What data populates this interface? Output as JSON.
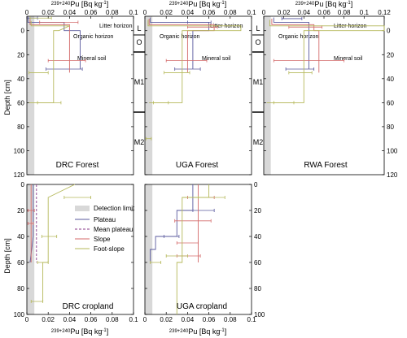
{
  "colors": {
    "plateau": "#5a5a9e",
    "mean_plateau": "#8a3a8a",
    "slope": "#d46a6a",
    "foot_slope": "#b5b85a",
    "detection": "#d8d8d8"
  },
  "legend": {
    "detection": "Detection limit",
    "plateau": "Plateau",
    "mean_plateau": "Mean plateau",
    "slope": "Slope",
    "foot_slope": "Foot-slope"
  },
  "xlabel_top_prefix": "239+240",
  "xlabel_top_main": "Pu [Bq kg",
  "xlabel_top_sup": "-1",
  "xlabel_top_end": "]",
  "ylabel": "Depth [cm]",
  "horizons": {
    "litter": "Litter horizon",
    "organic": "Organic horizon",
    "mineral": "Mineral soil"
  },
  "horizon_codes": [
    "L",
    "O",
    "M1",
    "M2"
  ],
  "chart_data": [
    {
      "type": "line",
      "title": "DRC Forest",
      "xlim": [
        0,
        0.1
      ],
      "ylim": [
        120,
        -12
      ],
      "xticks": [
        "0",
        "0.02",
        "0.04",
        "0.06",
        "0.08",
        "0.1"
      ],
      "yticks": [
        "0",
        "20",
        "40",
        "60",
        "80",
        "100",
        "120"
      ],
      "series": [
        {
          "name": "Plateau",
          "points": [
            [
              0.001,
              -11
            ],
            [
              0.001,
              -7
            ],
            [
              0.035,
              -7
            ],
            [
              0.035,
              0
            ],
            [
              0.05,
              0
            ],
            [
              0.05,
              25
            ],
            [
              0.05,
              32
            ]
          ],
          "err": [
            [
              0.003,
              -10.5,
              0.001,
              0.01
            ],
            [
              0.03,
              32,
              0.018,
              0.052
            ]
          ]
        },
        {
          "name": "Slope",
          "points": [
            [
              0.003,
              -10
            ],
            [
              0.003,
              -5
            ],
            [
              0.04,
              -5
            ],
            [
              0.04,
              0
            ],
            [
              0.04,
              18
            ],
            [
              0.04,
              35
            ]
          ],
          "err": [
            [
              0.025,
              -7,
              0.012,
              0.048
            ],
            [
              0.035,
              25,
              0.02,
              0.055
            ]
          ]
        },
        {
          "name": "Foot-slope",
          "points": [
            [
              0.004,
              -8
            ],
            [
              0.004,
              -4
            ],
            [
              0.04,
              -4
            ],
            [
              0.03,
              0
            ],
            [
              0.025,
              0
            ],
            [
              0.025,
              60
            ],
            [
              0.002,
              60
            ]
          ],
          "err": [
            [
              0.012,
              -10.5,
              0.003,
              0.023
            ],
            [
              0.01,
              35,
              0.002,
              0.02
            ],
            [
              0.02,
              60,
              0.01,
              0.032
            ]
          ]
        }
      ]
    },
    {
      "type": "line",
      "title": "UGA Forest",
      "xlim": [
        0,
        0.1
      ],
      "ylim": [
        120,
        -12
      ],
      "xticks": [
        "0",
        "0.02",
        "0.04",
        "0.06",
        "0.08",
        "0.1"
      ],
      "yticks": [
        "0",
        "20",
        "40",
        "60",
        "80",
        "100",
        "120"
      ],
      "series": [
        {
          "name": "Plateau",
          "points": [
            [
              0.005,
              -11
            ],
            [
              0.005,
              -7
            ],
            [
              0.06,
              -7
            ],
            [
              0.06,
              0
            ],
            [
              0.045,
              0
            ],
            [
              0.045,
              25
            ],
            [
              0.045,
              32
            ]
          ],
          "err": [
            [
              0.04,
              32,
              0.028,
              0.052
            ],
            [
              0.05,
              -7,
              0.04,
              0.062
            ]
          ]
        },
        {
          "name": "Slope",
          "points": [
            [
              0.004,
              -10
            ],
            [
              0.004,
              -5
            ],
            [
              0.065,
              -5
            ],
            [
              0.065,
              0
            ],
            [
              0.04,
              0
            ],
            [
              0.04,
              18
            ],
            [
              0.04,
              35
            ]
          ],
          "err": [
            [
              0.035,
              25,
              0.02,
              0.058
            ],
            [
              0.055,
              -3,
              0.04,
              0.068
            ]
          ]
        },
        {
          "name": "Foot-slope",
          "points": [
            [
              0.003,
              -9
            ],
            [
              0.003,
              -4
            ],
            [
              0.09,
              -4
            ],
            [
              0.09,
              0
            ],
            [
              0.035,
              0
            ],
            [
              0.035,
              60
            ],
            [
              0.004,
              60
            ]
          ],
          "err": [
            [
              0.03,
              35,
              0.018,
              0.042
            ],
            [
              0.015,
              60,
              0.008,
              0.022
            ],
            [
              0.003,
              90,
              0.001,
              0.006
            ]
          ]
        }
      ]
    },
    {
      "type": "line",
      "title": "RWA Forest",
      "xlim": [
        0,
        0.12
      ],
      "ylim": [
        120,
        -12
      ],
      "xticks": [
        "0",
        "0.02",
        "0.04",
        "0.06",
        "0.08",
        "0.1",
        "0.12"
      ],
      "yticks": [
        "0",
        "20",
        "40",
        "60",
        "80",
        "100",
        "120"
      ],
      "series": [
        {
          "name": "Plateau",
          "points": [
            [
              0.01,
              -11
            ],
            [
              0.01,
              -7
            ],
            [
              0.045,
              -7
            ],
            [
              0.045,
              0
            ],
            [
              0.045,
              25
            ],
            [
              0.045,
              32
            ]
          ],
          "err": [
            [
              0.035,
              32,
              0.022,
              0.05
            ],
            [
              0.03,
              -10,
              0.018,
              0.038
            ]
          ]
        },
        {
          "name": "Slope",
          "points": [
            [
              0.008,
              -10
            ],
            [
              0.008,
              -5
            ],
            [
              0.05,
              -5
            ],
            [
              0.05,
              0
            ],
            [
              0.055,
              0
            ],
            [
              0.055,
              18
            ],
            [
              0.055,
              35
            ]
          ],
          "err": [
            [
              0.045,
              25,
              0.01,
              0.08
            ],
            [
              0.04,
              -3,
              0.025,
              0.058
            ]
          ]
        },
        {
          "name": "Foot-slope",
          "points": [
            [
              0.006,
              -9
            ],
            [
              0.006,
              -4
            ],
            [
              0.12,
              -4
            ],
            [
              0.12,
              0
            ],
            [
              0.04,
              0
            ],
            [
              0.04,
              60
            ],
            [
              0.003,
              60
            ]
          ],
          "err": [
            [
              0.035,
              35,
              0.025,
              0.048
            ],
            [
              0.02,
              60,
              0.01,
              0.03
            ]
          ]
        }
      ]
    },
    {
      "type": "line",
      "title": "DRC cropland",
      "xlim": [
        0,
        0.1
      ],
      "ylim": [
        100,
        0
      ],
      "xticks": [
        "0",
        "0.02",
        "0.04",
        "0.06",
        "0.08",
        "0.1"
      ],
      "yticks": [
        "0",
        "20",
        "40",
        "60",
        "80",
        "100"
      ],
      "series": [
        {
          "name": "Plateau",
          "points": [
            [
              0.006,
              0
            ],
            [
              0.006,
              18
            ],
            [
              0.006,
              40
            ],
            [
              0.003,
              60
            ]
          ],
          "err": []
        },
        {
          "name": "Mean plateau",
          "points": [
            [
              0.009,
              0
            ],
            [
              0.009,
              30
            ],
            [
              0.009,
              60
            ]
          ],
          "err": []
        },
        {
          "name": "Slope",
          "points": [
            [
              0.004,
              0
            ],
            [
              0.004,
              20
            ],
            [
              0.004,
              40
            ],
            [
              0.004,
              60
            ]
          ],
          "err": [
            [
              0.004,
              20,
              0.001,
              0.007
            ],
            [
              0.003,
              30,
              0.001,
              0.006
            ]
          ]
        },
        {
          "name": "Foot-slope",
          "points": [
            [
              0.045,
              0
            ],
            [
              0.02,
              10
            ],
            [
              0.02,
              60
            ],
            [
              0.015,
              60
            ],
            [
              0.015,
              90
            ]
          ],
          "err": [
            [
              0.045,
              10,
              0.035,
              0.06
            ],
            [
              0.02,
              40,
              0.014,
              0.028
            ],
            [
              0.015,
              60,
              0.01,
              0.02
            ],
            [
              0.01,
              90,
              0.004,
              0.015
            ]
          ]
        }
      ]
    },
    {
      "type": "line",
      "title": "UGA cropland",
      "xlim": [
        0,
        0.1
      ],
      "ylim": [
        100,
        0
      ],
      "xticks": [
        "0",
        "0.02",
        "0.04",
        "0.06",
        "0.08",
        "0.1"
      ],
      "yticks": [
        "0",
        "20",
        "40",
        "60",
        "80",
        "100"
      ],
      "series": [
        {
          "name": "Plateau",
          "points": [
            [
              0.045,
              0
            ],
            [
              0.045,
              20
            ],
            [
              0.03,
              20
            ],
            [
              0.03,
              40
            ],
            [
              0.01,
              40
            ],
            [
              0.01,
              50
            ],
            [
              0.005,
              50
            ],
            [
              0.005,
              60
            ]
          ],
          "err": [
            [
              0.055,
              20,
              0.045,
              0.065
            ],
            [
              0.025,
              40,
              0.018,
              0.032
            ]
          ]
        },
        {
          "name": "Slope",
          "points": [
            [
              0.05,
              0
            ],
            [
              0.05,
              10
            ],
            [
              0.05,
              45
            ],
            [
              0.05,
              60
            ]
          ],
          "err": [
            [
              0.05,
              10,
              0.04,
              0.065
            ],
            [
              0.045,
              28,
              0.028,
              0.062
            ],
            [
              0.04,
              45,
              0.03,
              0.05
            ],
            [
              0.04,
              55,
              0.03,
              0.052
            ]
          ]
        },
        {
          "name": "Foot-slope",
          "points": [
            [
              0.06,
              0
            ],
            [
              0.06,
              10
            ],
            [
              0.035,
              10
            ],
            [
              0.035,
              60
            ],
            [
              0.03,
              60
            ],
            [
              0.03,
              100
            ]
          ],
          "err": [
            [
              0.065,
              10,
              0.05,
              0.075
            ],
            [
              0.03,
              55,
              0.02,
              0.04
            ],
            [
              0.01,
              60,
              0.005,
              0.015
            ]
          ]
        }
      ]
    }
  ]
}
